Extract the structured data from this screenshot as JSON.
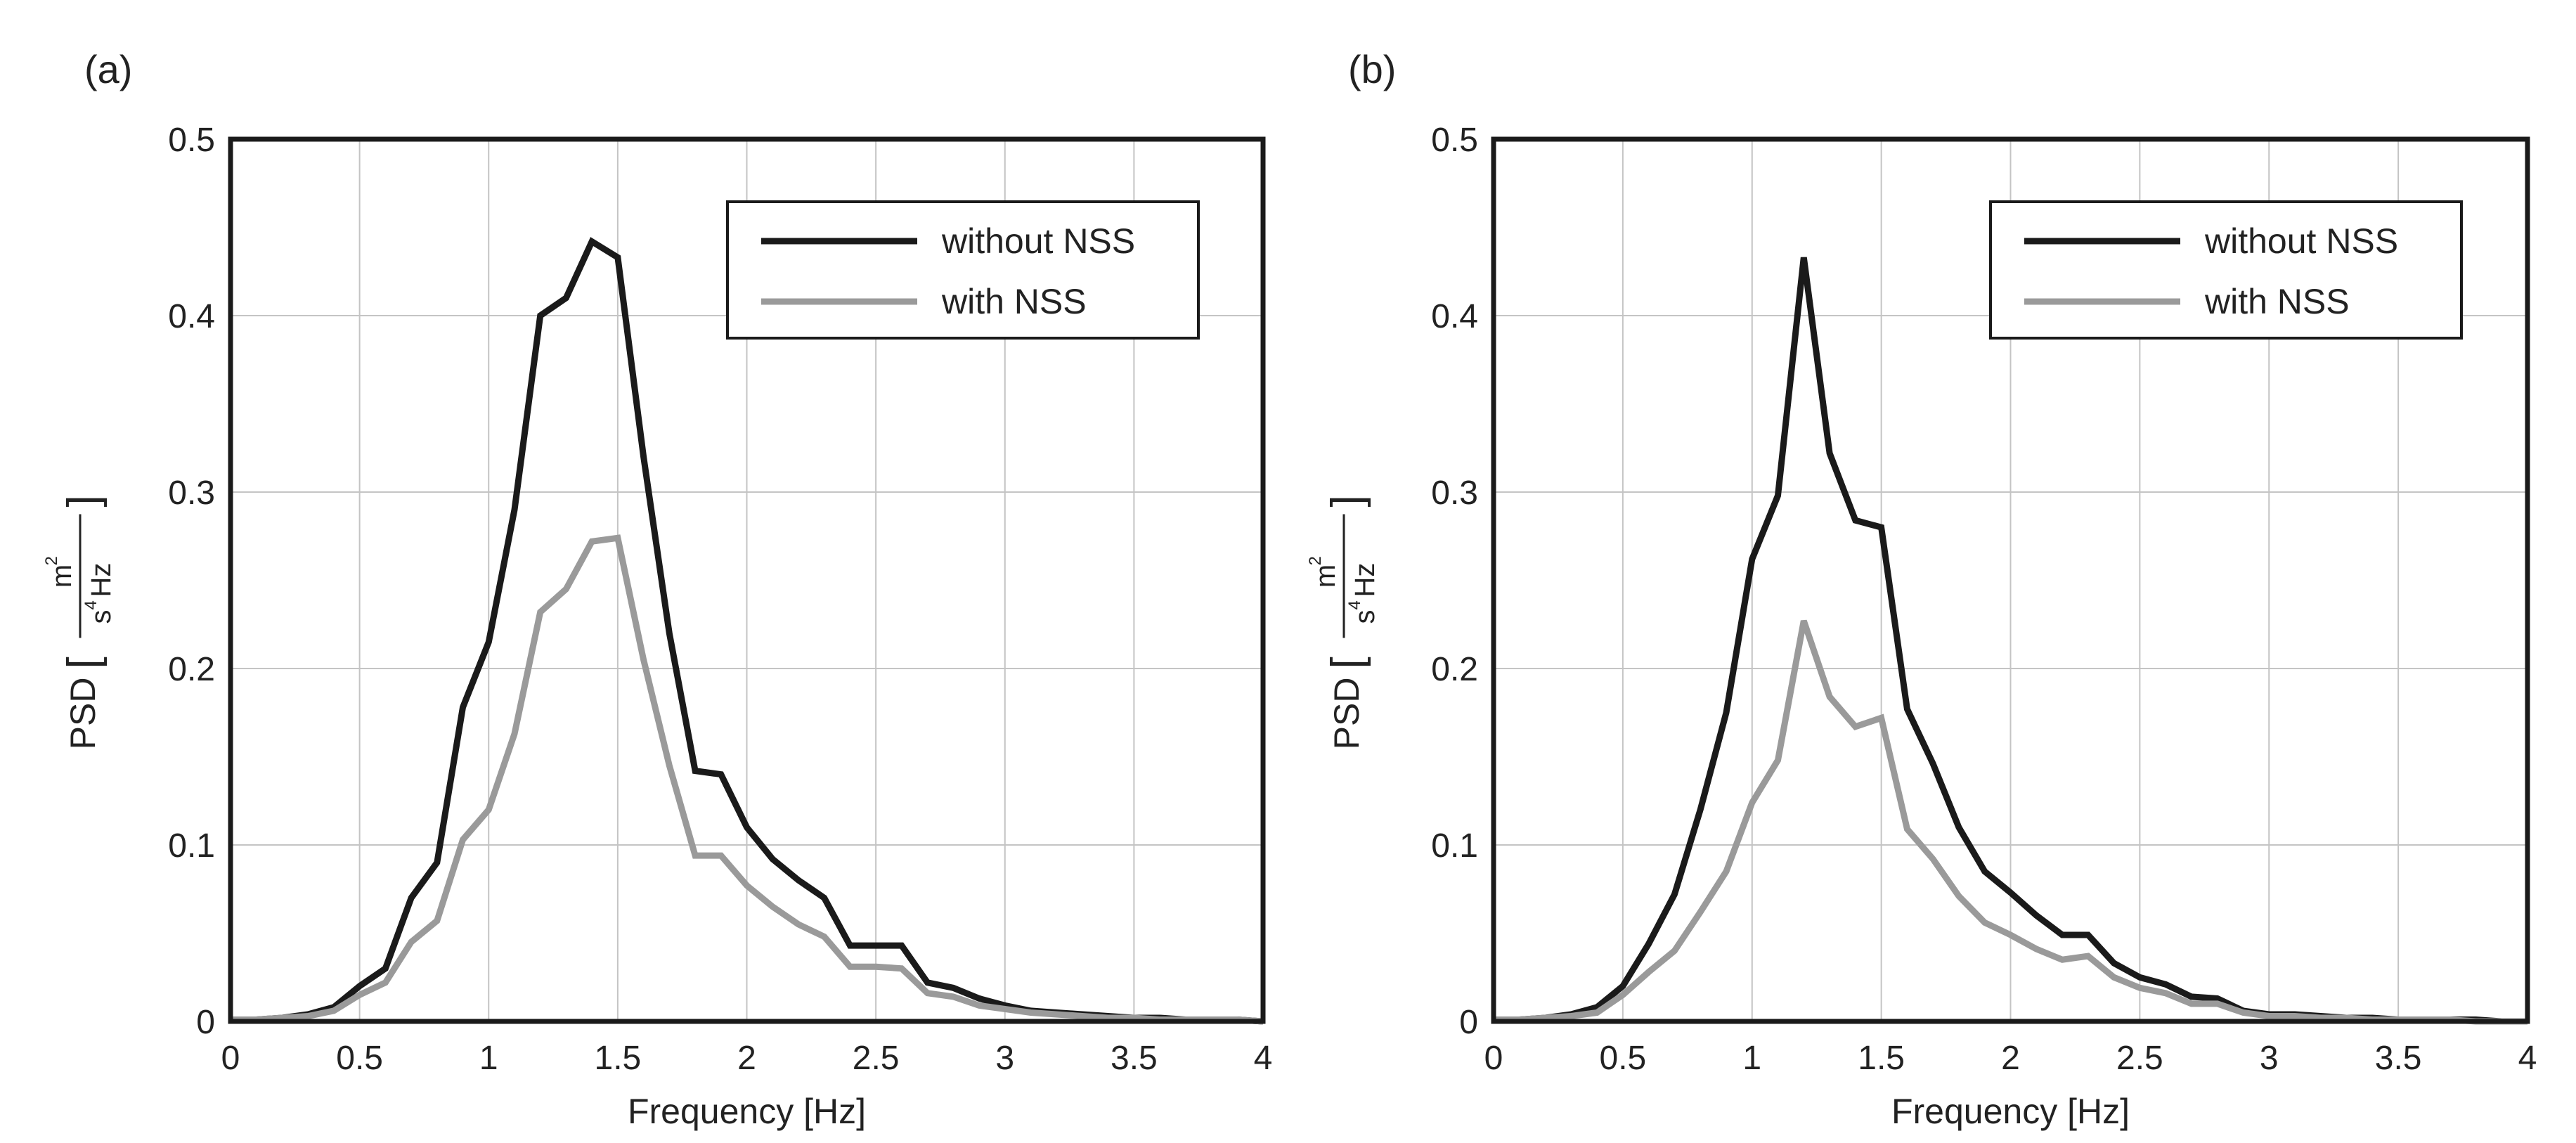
{
  "chart_data": [
    {
      "type": "line",
      "panel_label": "(a)",
      "xlabel": "Frequency  [Hz]",
      "ylabel": "PSD",
      "ylabel_unit": {
        "numerator": "m",
        "numerator_exp": "2",
        "denominator_base": "s",
        "denominator_exp": "4",
        "denominator_tail": "Hz"
      },
      "xlim": [
        0,
        4
      ],
      "ylim": [
        0,
        0.5
      ],
      "xticks": [
        0,
        0.5,
        1,
        1.5,
        2,
        2.5,
        3,
        3.5,
        4
      ],
      "xtick_labels": [
        "0",
        "0.5",
        "1",
        "1.5",
        "2",
        "2.5",
        "3",
        "3.5",
        "4"
      ],
      "yticks": [
        0,
        0.1,
        0.2,
        0.3,
        0.4,
        0.5
      ],
      "ytick_labels": [
        "0",
        "0.1",
        "0.2",
        "0.3",
        "0.4",
        "0.5"
      ],
      "grid": true,
      "legend_position": "top-right",
      "series": [
        {
          "name": "without NSS",
          "color": "#1a1a1a",
          "x": [
            0,
            0.1,
            0.2,
            0.3,
            0.4,
            0.5,
            0.6,
            0.7,
            0.8,
            0.9,
            1.0,
            1.1,
            1.2,
            1.3,
            1.4,
            1.5,
            1.6,
            1.7,
            1.8,
            1.9,
            2.0,
            2.1,
            2.2,
            2.3,
            2.4,
            2.5,
            2.6,
            2.7,
            2.8,
            2.9,
            3.0,
            3.1,
            3.2,
            3.3,
            3.4,
            3.5,
            3.6,
            3.7,
            3.8,
            3.9,
            4.0
          ],
          "y": [
            0.001,
            0.001,
            0.002,
            0.004,
            0.008,
            0.02,
            0.03,
            0.07,
            0.09,
            0.178,
            0.215,
            0.29,
            0.4,
            0.41,
            0.442,
            0.433,
            0.32,
            0.22,
            0.142,
            0.14,
            0.11,
            0.092,
            0.08,
            0.07,
            0.043,
            0.043,
            0.043,
            0.022,
            0.019,
            0.013,
            0.009,
            0.006,
            0.005,
            0.004,
            0.003,
            0.002,
            0.002,
            0.001,
            0.001,
            0.001,
            0.0
          ]
        },
        {
          "name": "with NSS",
          "color": "#9a9a9a",
          "x": [
            0,
            0.1,
            0.2,
            0.3,
            0.4,
            0.5,
            0.6,
            0.7,
            0.8,
            0.9,
            1.0,
            1.1,
            1.2,
            1.3,
            1.4,
            1.5,
            1.6,
            1.7,
            1.8,
            1.9,
            2.0,
            2.1,
            2.2,
            2.3,
            2.4,
            2.5,
            2.6,
            2.7,
            2.8,
            2.9,
            3.0,
            3.1,
            3.2,
            3.3,
            3.4,
            3.5,
            3.6,
            3.7,
            3.8,
            3.9,
            4.0
          ],
          "y": [
            0.001,
            0.001,
            0.002,
            0.003,
            0.006,
            0.015,
            0.022,
            0.045,
            0.057,
            0.103,
            0.12,
            0.163,
            0.232,
            0.245,
            0.272,
            0.274,
            0.205,
            0.145,
            0.094,
            0.094,
            0.077,
            0.065,
            0.055,
            0.048,
            0.031,
            0.031,
            0.03,
            0.016,
            0.014,
            0.009,
            0.007,
            0.005,
            0.004,
            0.003,
            0.002,
            0.002,
            0.001,
            0.001,
            0.001,
            0.001,
            0.0
          ]
        }
      ]
    },
    {
      "type": "line",
      "panel_label": "(b)",
      "xlabel": "Frequency  [Hz]",
      "ylabel": "PSD",
      "ylabel_unit": {
        "numerator": "m",
        "numerator_exp": "2",
        "denominator_base": "s",
        "denominator_exp": "4",
        "denominator_tail": "Hz"
      },
      "xlim": [
        0,
        4
      ],
      "ylim": [
        0,
        0.5
      ],
      "xticks": [
        0,
        0.5,
        1,
        1.5,
        2,
        2.5,
        3,
        3.5,
        4
      ],
      "xtick_labels": [
        "0",
        "0.5",
        "1",
        "1.5",
        "2",
        "2.5",
        "3",
        "3.5",
        "4"
      ],
      "yticks": [
        0,
        0.1,
        0.2,
        0.3,
        0.4,
        0.5
      ],
      "ytick_labels": [
        "0",
        "0.1",
        "0.2",
        "0.3",
        "0.4",
        "0.5"
      ],
      "grid": true,
      "legend_position": "top-right",
      "series": [
        {
          "name": "without NSS",
          "color": "#1a1a1a",
          "x": [
            0,
            0.1,
            0.2,
            0.3,
            0.4,
            0.5,
            0.6,
            0.7,
            0.8,
            0.9,
            1.0,
            1.1,
            1.2,
            1.3,
            1.4,
            1.5,
            1.6,
            1.7,
            1.8,
            1.9,
            2.0,
            2.1,
            2.2,
            2.3,
            2.4,
            2.5,
            2.6,
            2.7,
            2.8,
            2.9,
            3.0,
            3.1,
            3.2,
            3.3,
            3.4,
            3.5,
            3.6,
            3.7,
            3.8,
            3.9,
            4.0
          ],
          "y": [
            0.001,
            0.001,
            0.002,
            0.004,
            0.008,
            0.02,
            0.044,
            0.072,
            0.12,
            0.175,
            0.262,
            0.298,
            0.433,
            0.322,
            0.284,
            0.28,
            0.177,
            0.146,
            0.11,
            0.085,
            0.073,
            0.06,
            0.049,
            0.049,
            0.033,
            0.025,
            0.021,
            0.014,
            0.013,
            0.006,
            0.004,
            0.004,
            0.003,
            0.002,
            0.002,
            0.001,
            0.001,
            0.001,
            0.001,
            0.0,
            0.0
          ]
        },
        {
          "name": "with NSS",
          "color": "#9a9a9a",
          "x": [
            0,
            0.1,
            0.2,
            0.3,
            0.4,
            0.5,
            0.6,
            0.7,
            0.8,
            0.9,
            1.0,
            1.1,
            1.2,
            1.3,
            1.4,
            1.5,
            1.6,
            1.7,
            1.8,
            1.9,
            2.0,
            2.1,
            2.2,
            2.3,
            2.4,
            2.5,
            2.6,
            2.7,
            2.8,
            2.9,
            3.0,
            3.1,
            3.2,
            3.3,
            3.4,
            3.5,
            3.6,
            3.7,
            3.8,
            3.9,
            4.0
          ],
          "y": [
            0.001,
            0.001,
            0.002,
            0.003,
            0.005,
            0.015,
            0.028,
            0.04,
            0.062,
            0.085,
            0.124,
            0.148,
            0.227,
            0.184,
            0.167,
            0.172,
            0.109,
            0.092,
            0.071,
            0.056,
            0.049,
            0.041,
            0.035,
            0.037,
            0.025,
            0.019,
            0.016,
            0.01,
            0.01,
            0.005,
            0.003,
            0.003,
            0.002,
            0.002,
            0.001,
            0.001,
            0.001,
            0.001,
            0.0,
            0.0,
            0.0
          ]
        }
      ]
    }
  ]
}
